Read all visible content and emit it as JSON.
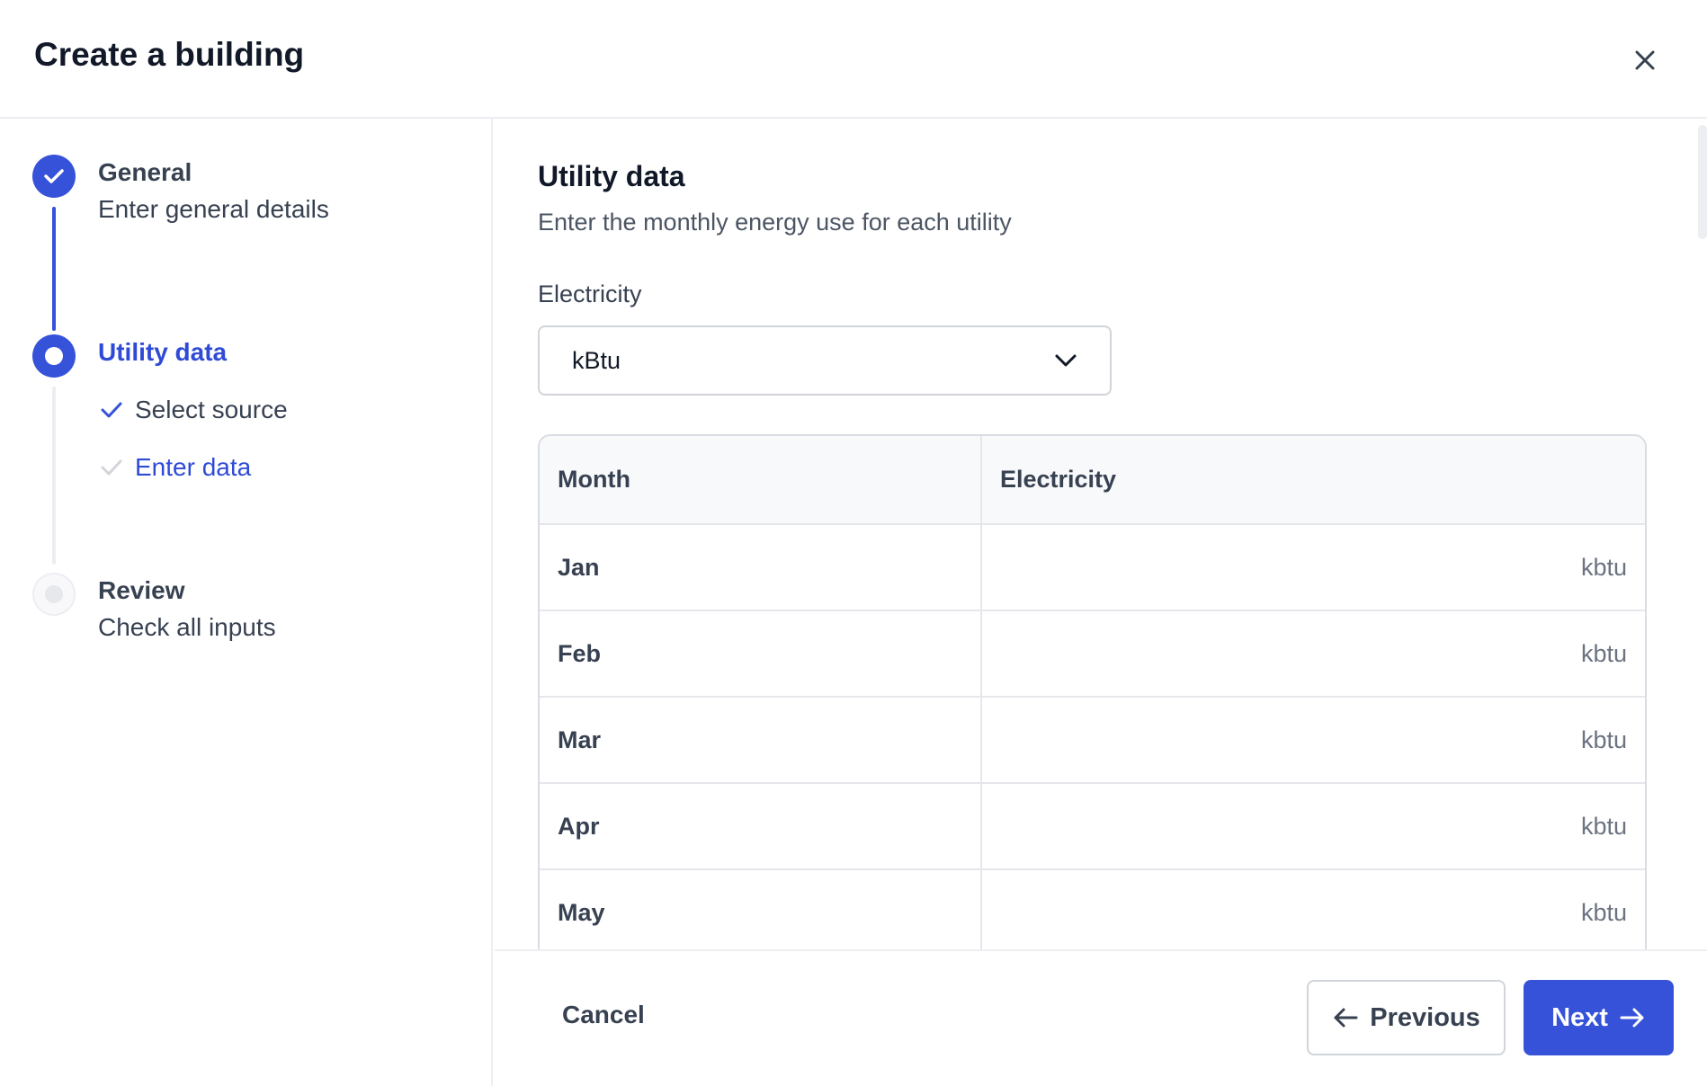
{
  "header": {
    "title": "Create a building",
    "close_icon": "close-icon"
  },
  "steps": [
    {
      "title": "General",
      "description": "Enter general details",
      "status": "complete"
    },
    {
      "title": "Utility data",
      "status": "current",
      "substeps": [
        {
          "label": "Select source",
          "status": "complete"
        },
        {
          "label": "Enter data",
          "status": "current"
        }
      ]
    },
    {
      "title": "Review",
      "description": "Check all inputs",
      "status": "upcoming"
    }
  ],
  "main": {
    "title": "Utility data",
    "description": "Enter the monthly energy use for each utility",
    "select_label": "Electricity",
    "select_value": "kBtu",
    "table": {
      "columns": [
        "Month",
        "Electricity"
      ],
      "rows": [
        {
          "month": "Jan",
          "unit": "kbtu"
        },
        {
          "month": "Feb",
          "unit": "kbtu"
        },
        {
          "month": "Mar",
          "unit": "kbtu"
        },
        {
          "month": "Apr",
          "unit": "kbtu"
        },
        {
          "month": "May",
          "unit": "kbtu"
        }
      ]
    }
  },
  "footer": {
    "cancel": "Cancel",
    "previous": "Previous",
    "next": "Next"
  },
  "colors": {
    "accent": "#3652d9",
    "text": "#374151",
    "border": "#e5e7eb"
  }
}
